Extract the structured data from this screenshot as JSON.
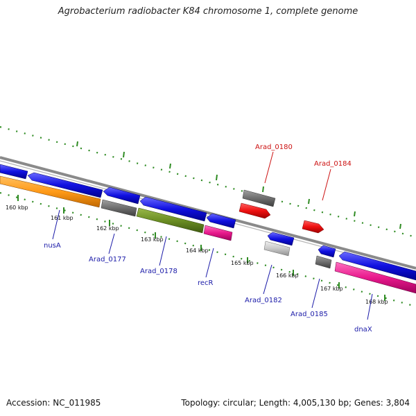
{
  "title": "Agrobacterium radiobacter K84 chromosome 1, complete genome",
  "footer": {
    "accession": "Accession: NC_011985",
    "summary": "Topology: circular; Length: 4,005,130 bp; Genes: 3,804"
  },
  "colors": {
    "forward_cds": "#1010e0",
    "reverse_cds": "#1010e0",
    "orange": "#ff9a18",
    "olive": "#6b8e23",
    "gray": "#6e6e6e",
    "lightgray": "#c8c8c8",
    "red": "#ee1111",
    "magenta": "#e8198c",
    "tick_green": "#2e8b22",
    "label_blue": "#1a1aa8",
    "label_red": "#cc1111"
  },
  "ticks": [
    {
      "label": "160 kbp"
    },
    {
      "label": "161 kbp"
    },
    {
      "label": "162 kbp"
    },
    {
      "label": "163 kbp"
    },
    {
      "label": "164 kbp"
    },
    {
      "label": "165 kbp"
    },
    {
      "label": "166 kbp"
    },
    {
      "label": "167 kbp"
    },
    {
      "label": "168 kbp"
    }
  ],
  "gene_labels": [
    {
      "name": "nusA",
      "color": "label_blue"
    },
    {
      "name": "Arad_0177",
      "color": "label_blue"
    },
    {
      "name": "Arad_0178",
      "color": "label_blue"
    },
    {
      "name": "recR",
      "color": "label_blue"
    },
    {
      "name": "Arad_0182",
      "color": "label_blue"
    },
    {
      "name": "Arad_0185",
      "color": "label_blue"
    },
    {
      "name": "dnaX",
      "color": "label_blue"
    },
    {
      "name": "Arad_0180",
      "color": "label_red"
    },
    {
      "name": "Arad_0184",
      "color": "label_red"
    }
  ]
}
